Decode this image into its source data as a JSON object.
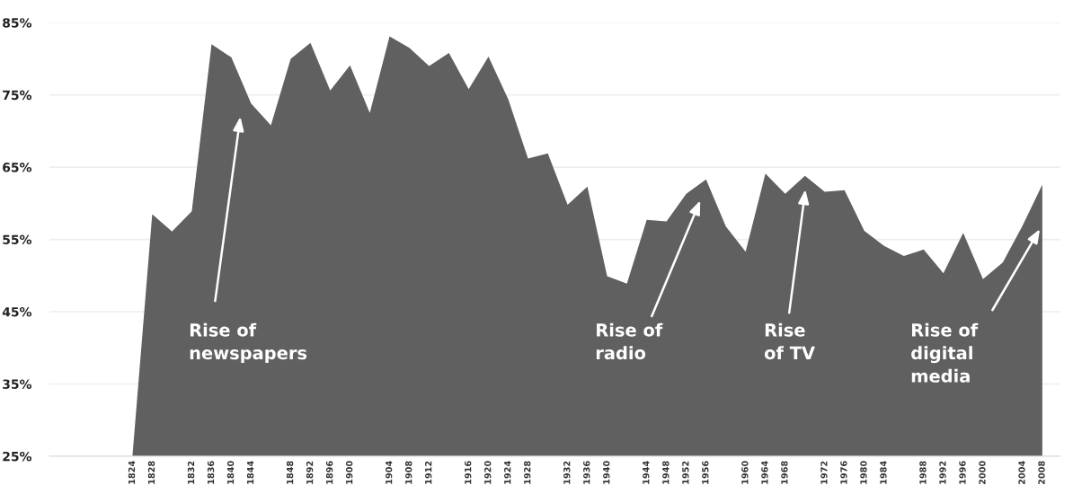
{
  "chart_data": {
    "type": "area",
    "categories": [
      "1824",
      "1828",
      null,
      "1832",
      "1836",
      "1840",
      "1844",
      null,
      "1848",
      "1892",
      "1896",
      "1900",
      null,
      "1904",
      "1908",
      "1912",
      null,
      "1916",
      "1920",
      "1924",
      "1928",
      null,
      "1932",
      "1936",
      "1940",
      null,
      "1944",
      "1948",
      "1952",
      "1956",
      null,
      "1960",
      "1964",
      "1968",
      null,
      "1972",
      "1976",
      "1980",
      "1984",
      null,
      "1988",
      "1992",
      "1996",
      "2000",
      null,
      "2004",
      "2008"
    ],
    "series": [
      {
        "color": "#606060",
        "values": [
          25,
          58.5,
          56.1,
          58.9,
          82.0,
          80.2,
          73.8,
          70.8,
          80.0,
          82.2,
          75.6,
          79.1,
          72.5,
          83.1,
          81.5,
          79.0,
          80.8,
          75.8,
          80.3,
          74.4,
          66.2,
          66.9,
          59.8,
          62.3,
          49.9,
          48.9,
          57.7,
          57.5,
          61.3,
          63.3,
          56.8,
          53.3,
          64.1,
          61.3,
          63.8,
          61.6,
          61.8,
          56.2,
          54.1,
          52.7,
          53.6,
          50.3,
          55.9,
          49.5,
          51.8,
          56.9,
          62.6
        ]
      }
    ],
    "ylim": [
      25,
      85
    ],
    "yticks": [
      {
        "value": 25,
        "label": "25%"
      },
      {
        "value": 35,
        "label": "35%"
      },
      {
        "value": 45,
        "label": "45%"
      },
      {
        "value": 55,
        "label": "55%"
      },
      {
        "value": 65,
        "label": "65%"
      },
      {
        "value": 75,
        "label": "75%"
      },
      {
        "value": 85,
        "label": "85%"
      }
    ],
    "grid": "y",
    "annotations": [
      "Rise of\nnewspapers",
      "Rise of\nradio",
      "Rise\nof TV",
      "Rise of\ndigital\nmedia"
    ]
  }
}
